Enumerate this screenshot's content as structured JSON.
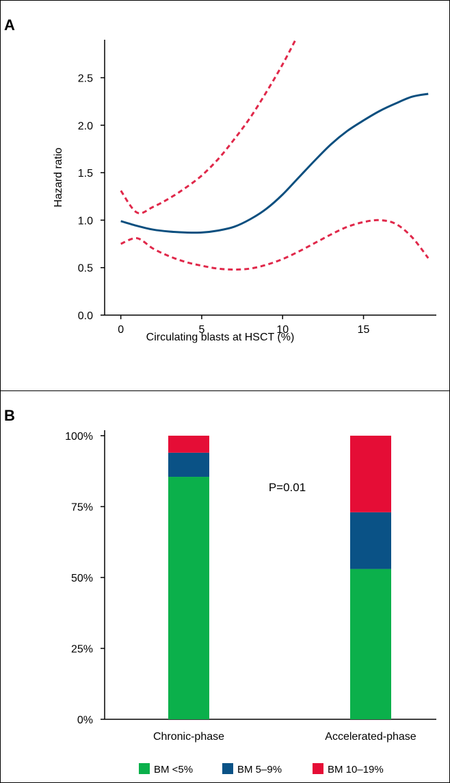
{
  "chart_data": [
    {
      "type": "line",
      "panel": "A",
      "xlabel": "Circulating blasts at HSCT (%)",
      "ylabel": "Hazard ratio",
      "xlim": [
        -1,
        19.5
      ],
      "ylim": [
        0,
        2.9
      ],
      "xticks": [
        "0",
        "5",
        "10",
        "15"
      ],
      "yticks": [
        "0.0",
        "0.5",
        "1.0",
        "1.5",
        "2.0",
        "2.5"
      ],
      "grid": false,
      "series": [
        {
          "style": "solid",
          "color": "#0b4f7f",
          "points": [
            [
              0,
              0.99
            ],
            [
              1,
              0.94
            ],
            [
              2,
              0.9
            ],
            [
              3,
              0.88
            ],
            [
              4,
              0.87
            ],
            [
              5,
              0.87
            ],
            [
              6,
              0.89
            ],
            [
              7,
              0.93
            ],
            [
              8,
              1.01
            ],
            [
              9,
              1.12
            ],
            [
              10,
              1.27
            ],
            [
              11,
              1.45
            ],
            [
              12,
              1.63
            ],
            [
              13,
              1.8
            ],
            [
              14,
              1.94
            ],
            [
              15,
              2.05
            ],
            [
              16,
              2.15
            ],
            [
              17,
              2.23
            ],
            [
              18,
              2.3
            ],
            [
              19,
              2.33
            ]
          ]
        },
        {
          "style": "dashed",
          "color": "#e0284a",
          "points": [
            [
              0,
              1.31
            ],
            [
              1,
              1.08
            ],
            [
              2,
              1.14
            ],
            [
              3,
              1.23
            ],
            [
              4,
              1.34
            ],
            [
              5,
              1.47
            ],
            [
              6,
              1.64
            ],
            [
              7,
              1.85
            ],
            [
              8,
              2.08
            ],
            [
              9,
              2.35
            ],
            [
              10,
              2.64
            ],
            [
              10.8,
              2.9
            ]
          ]
        },
        {
          "style": "dashed",
          "color": "#e0284a",
          "points": [
            [
              0,
              0.75
            ],
            [
              1,
              0.81
            ],
            [
              2,
              0.7
            ],
            [
              3,
              0.62
            ],
            [
              4,
              0.56
            ],
            [
              5,
              0.52
            ],
            [
              6,
              0.49
            ],
            [
              7,
              0.48
            ],
            [
              8,
              0.49
            ],
            [
              9,
              0.53
            ],
            [
              10,
              0.59
            ],
            [
              11,
              0.67
            ],
            [
              12,
              0.76
            ],
            [
              13,
              0.85
            ],
            [
              14,
              0.93
            ],
            [
              15,
              0.98
            ],
            [
              16,
              1.0
            ],
            [
              17,
              0.96
            ],
            [
              18,
              0.82
            ],
            [
              19,
              0.6
            ]
          ]
        }
      ]
    },
    {
      "type": "bar",
      "stacked": true,
      "panel": "B",
      "categories": [
        "Chronic-phase",
        "Accelerated-phase"
      ],
      "yticks": [
        "0%",
        "25%",
        "50%",
        "75%",
        "100%"
      ],
      "ylim": [
        0,
        100
      ],
      "annotation": "P=0.01",
      "legend_position": "bottom",
      "series": [
        {
          "name": "BM <5%",
          "color": "#0bb04b",
          "values": [
            85.5,
            53
          ]
        },
        {
          "name": "BM 5–9%",
          "color": "#0a5286",
          "values": [
            8.5,
            20
          ]
        },
        {
          "name": "BM 10–19%",
          "color": "#e50d36",
          "values": [
            6,
            27
          ]
        }
      ]
    }
  ]
}
